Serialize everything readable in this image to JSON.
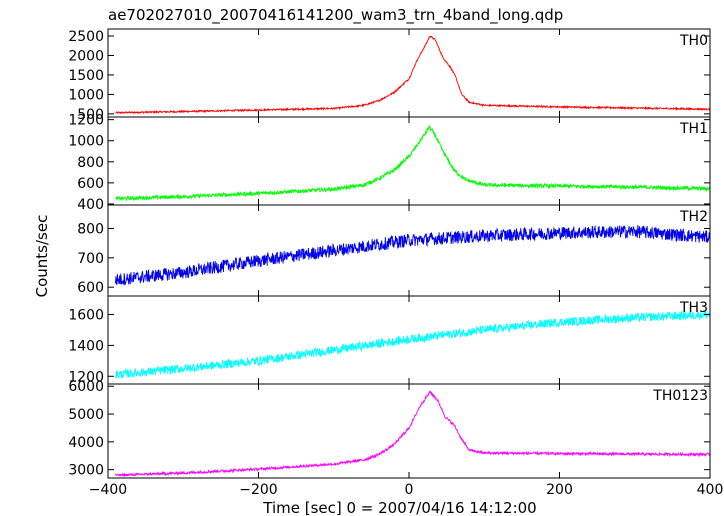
{
  "chart_data": {
    "type": "line",
    "title": "ae702027010_20070416141200_wam3_trn_4band_long.qdp",
    "xlabel": "Time [sec] 0 = 2007/04/16 14:12:00",
    "ylabel": "Counts/sec",
    "xlim": [
      -400,
      400
    ],
    "xticks": [
      -400,
      -200,
      0,
      200,
      400
    ],
    "panels": [
      {
        "name": "TH0",
        "color": "#ff0000",
        "ylim": [
          420,
          2680
        ],
        "yticks": [
          500,
          1000,
          1500,
          2000,
          2500
        ],
        "ytick_labels": [
          "500",
          "1000",
          "1500",
          "2000",
          "2500"
        ],
        "series_points": [
          [
            -390,
            530
          ],
          [
            -300,
            560
          ],
          [
            -200,
            600
          ],
          [
            -100,
            640
          ],
          [
            -60,
            720
          ],
          [
            -40,
            840
          ],
          [
            -20,
            1050
          ],
          [
            0,
            1400
          ],
          [
            10,
            1850
          ],
          [
            20,
            2200
          ],
          [
            28,
            2500
          ],
          [
            35,
            2400
          ],
          [
            45,
            1950
          ],
          [
            55,
            1700
          ],
          [
            62,
            1450
          ],
          [
            70,
            1000
          ],
          [
            80,
            800
          ],
          [
            100,
            720
          ],
          [
            200,
            680
          ],
          [
            300,
            650
          ],
          [
            400,
            620
          ]
        ],
        "noise": 20
      },
      {
        "name": "TH1",
        "color": "#00ff00",
        "ylim": [
          390,
          1225
        ],
        "yticks": [
          400,
          600,
          800,
          1000,
          1200
        ],
        "ytick_labels": [
          "400",
          "600",
          "800",
          "1000",
          "1200"
        ],
        "series_points": [
          [
            -390,
            450
          ],
          [
            -300,
            470
          ],
          [
            -200,
            500
          ],
          [
            -100,
            540
          ],
          [
            -60,
            580
          ],
          [
            -40,
            640
          ],
          [
            -20,
            720
          ],
          [
            0,
            850
          ],
          [
            15,
            1000
          ],
          [
            27,
            1130
          ],
          [
            35,
            1050
          ],
          [
            45,
            900
          ],
          [
            60,
            720
          ],
          [
            75,
            630
          ],
          [
            100,
            580
          ],
          [
            200,
            570
          ],
          [
            300,
            560
          ],
          [
            400,
            545
          ]
        ],
        "noise": 18
      },
      {
        "name": "TH2",
        "color": "#0000ee",
        "ylim": [
          570,
          880
        ],
        "yticks": [
          600,
          700,
          800
        ],
        "ytick_labels": [
          "600",
          "700",
          "800"
        ],
        "series_points": [
          [
            -390,
            625
          ],
          [
            -300,
            650
          ],
          [
            -200,
            690
          ],
          [
            -100,
            725
          ],
          [
            0,
            760
          ],
          [
            100,
            775
          ],
          [
            200,
            785
          ],
          [
            300,
            790
          ],
          [
            400,
            770
          ]
        ],
        "noise": 22
      },
      {
        "name": "TH3",
        "color": "#00ffff",
        "ylim": [
          1150,
          1720
        ],
        "yticks": [
          1200,
          1400,
          1600
        ],
        "ytick_labels": [
          "1200",
          "1400",
          "1600"
        ],
        "series_points": [
          [
            -390,
            1210
          ],
          [
            -300,
            1250
          ],
          [
            -200,
            1300
          ],
          [
            -100,
            1370
          ],
          [
            0,
            1440
          ],
          [
            100,
            1500
          ],
          [
            200,
            1550
          ],
          [
            300,
            1580
          ],
          [
            400,
            1600
          ]
        ],
        "noise": 28
      },
      {
        "name": "TH0123",
        "color": "#ff00ff",
        "ylim": [
          2700,
          6080
        ],
        "yticks": [
          3000,
          4000,
          5000,
          6000
        ],
        "ytick_labels": [
          "3000",
          "4000",
          "5000",
          "6000"
        ],
        "series_points": [
          [
            -390,
            2800
          ],
          [
            -300,
            2880
          ],
          [
            -200,
            3020
          ],
          [
            -100,
            3200
          ],
          [
            -60,
            3350
          ],
          [
            -40,
            3550
          ],
          [
            -20,
            3900
          ],
          [
            0,
            4500
          ],
          [
            15,
            5300
          ],
          [
            28,
            5800
          ],
          [
            38,
            5500
          ],
          [
            48,
            4900
          ],
          [
            60,
            4600
          ],
          [
            70,
            4100
          ],
          [
            80,
            3700
          ],
          [
            100,
            3600
          ],
          [
            200,
            3580
          ],
          [
            300,
            3560
          ],
          [
            400,
            3550
          ]
        ],
        "noise": 45
      }
    ]
  }
}
